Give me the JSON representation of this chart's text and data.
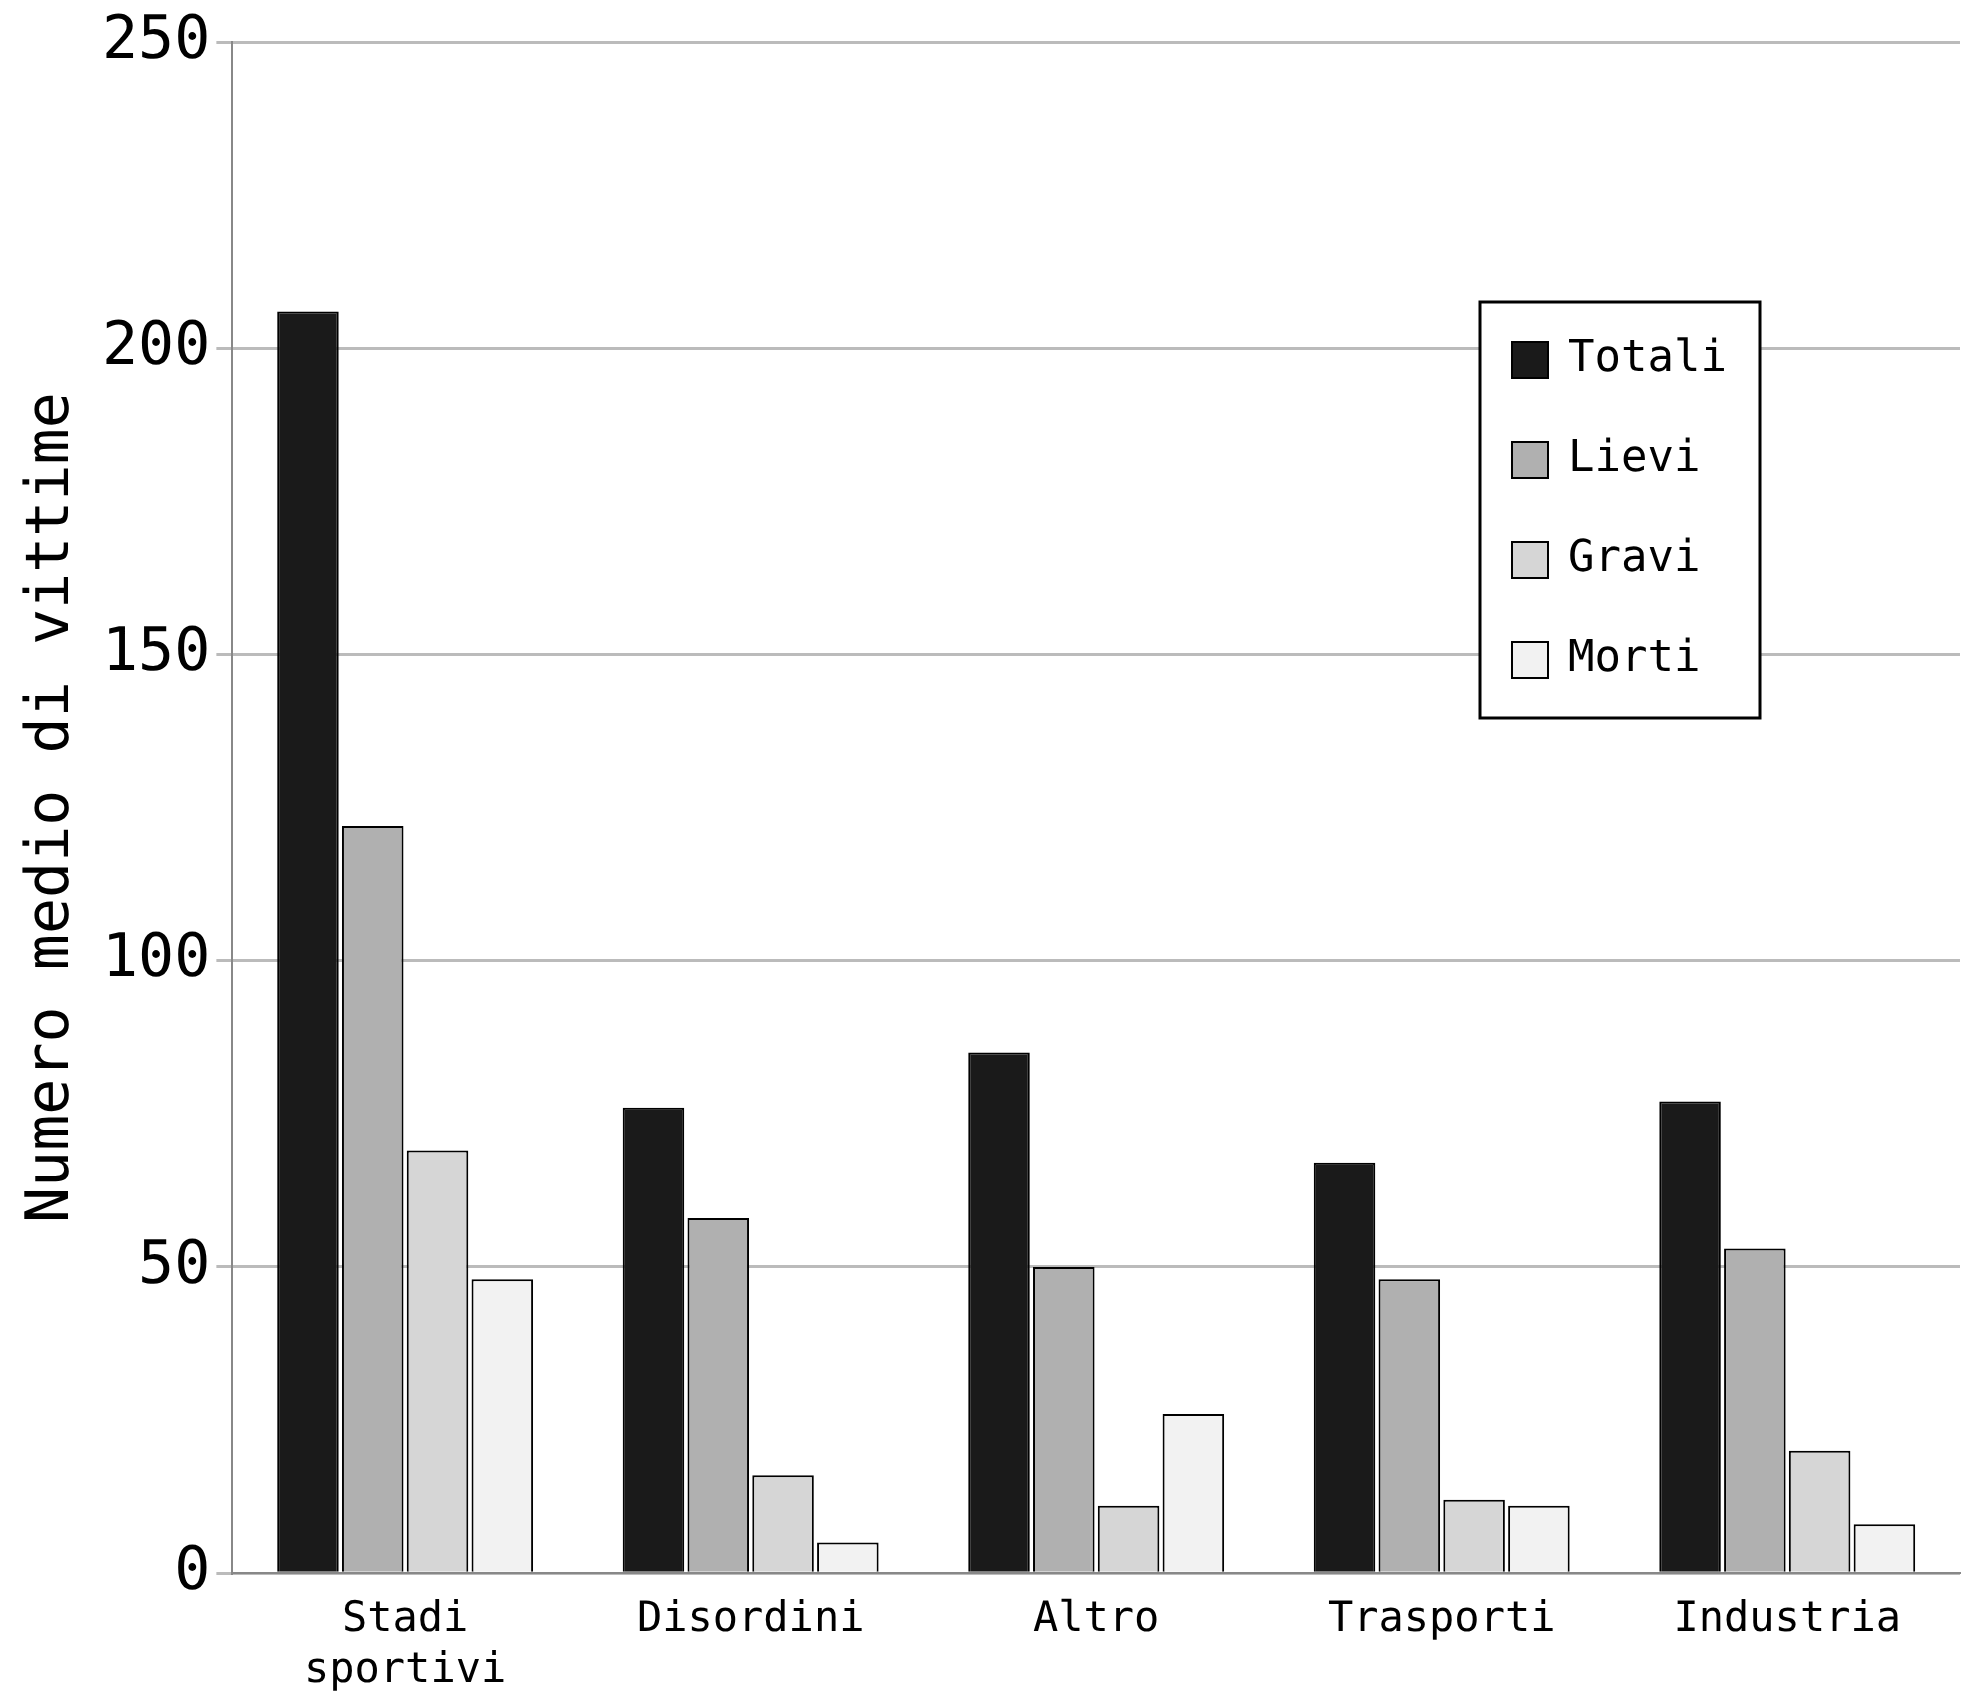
{
  "chart_data": {
    "type": "bar",
    "ylabel": "Numero medio di vittime",
    "categories": [
      "Stadi sportivi",
      "Disordini",
      "Altro",
      "Trasporti",
      "Industria"
    ],
    "series": [
      {
        "name": "Totali",
        "color": "#1a1a1a",
        "values": [
          206,
          76,
          85,
          67,
          77
        ]
      },
      {
        "name": "Lievi",
        "color": "#b0b0b0",
        "values": [
          122,
          58,
          50,
          48,
          53
        ]
      },
      {
        "name": "Gravi",
        "color": "#d6d6d6",
        "values": [
          69,
          16,
          11,
          12,
          20
        ]
      },
      {
        "name": "Morti",
        "color": "#f2f2f2",
        "values": [
          48,
          5,
          26,
          11,
          8
        ]
      }
    ],
    "ylim": [
      0,
      250
    ],
    "yticks": [
      0,
      50,
      100,
      150,
      200,
      250
    ],
    "grid": "y",
    "legend": "top right"
  }
}
